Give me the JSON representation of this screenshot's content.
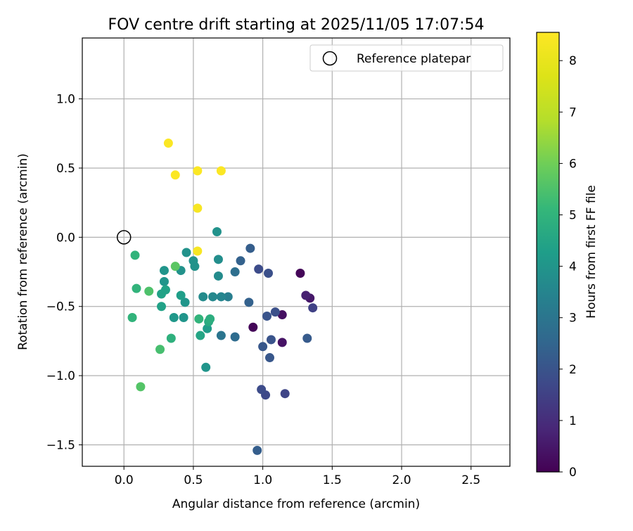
{
  "chart_data": {
    "type": "scatter",
    "title": "FOV centre drift starting at 2025/11/05 17:07:54",
    "xlabel": "Angular distance from reference (arcmin)",
    "ylabel": "Rotation from reference (arcmin)",
    "xlim": [
      -0.3,
      2.78
    ],
    "ylim": [
      -1.655,
      1.44
    ],
    "grid": true,
    "x_ticks": [
      0.0,
      0.5,
      1.0,
      1.5,
      2.0,
      2.5
    ],
    "x_tick_labels": [
      "0.0",
      "0.5",
      "1.0",
      "1.5",
      "2.0",
      "2.5"
    ],
    "y_ticks": [
      1.0,
      0.5,
      0.0,
      -0.5,
      -1.0,
      -1.5
    ],
    "y_tick_labels": [
      "1.0",
      "0.5",
      "0.0",
      "−0.5",
      "−1.0",
      "−1.5"
    ],
    "colorbar": {
      "label": "Hours from first FF file",
      "range": [
        0,
        8.55
      ],
      "ticks": [
        0,
        1,
        2,
        3,
        4,
        5,
        6,
        7,
        8
      ],
      "tick_labels": [
        "0",
        "1",
        "2",
        "3",
        "4",
        "5",
        "6",
        "7",
        "8"
      ],
      "colormap": "viridis"
    },
    "reference": {
      "label": "Reference platepar",
      "x": 0.0,
      "y": 0.0
    },
    "legend_location": "top-right",
    "points": [
      {
        "x": 1.27,
        "y": -0.26,
        "h": 0.1
      },
      {
        "x": 0.93,
        "y": -0.65,
        "h": 0.1
      },
      {
        "x": 1.14,
        "y": -0.56,
        "h": 0.3
      },
      {
        "x": 1.14,
        "y": -0.76,
        "h": 0.4
      },
      {
        "x": 1.34,
        "y": -0.44,
        "h": 0.5
      },
      {
        "x": 1.31,
        "y": -0.42,
        "h": 0.7
      },
      {
        "x": 1.36,
        "y": -0.51,
        "h": 1.5
      },
      {
        "x": 1.16,
        "y": -1.13,
        "h": 1.6
      },
      {
        "x": 1.02,
        "y": -1.14,
        "h": 1.7
      },
      {
        "x": 0.99,
        "y": -1.1,
        "h": 1.8
      },
      {
        "x": 0.97,
        "y": -0.23,
        "h": 1.8
      },
      {
        "x": 1.04,
        "y": -0.26,
        "h": 1.9
      },
      {
        "x": 1.09,
        "y": -0.54,
        "h": 1.9
      },
      {
        "x": 1.03,
        "y": -0.57,
        "h": 2.0
      },
      {
        "x": 1.06,
        "y": -0.74,
        "h": 2.0
      },
      {
        "x": 1.0,
        "y": -0.79,
        "h": 2.1
      },
      {
        "x": 1.05,
        "y": -0.87,
        "h": 2.1
      },
      {
        "x": 1.32,
        "y": -0.73,
        "h": 2.2
      },
      {
        "x": 0.91,
        "y": -0.08,
        "h": 2.3
      },
      {
        "x": 0.84,
        "y": -0.17,
        "h": 2.4
      },
      {
        "x": 0.9,
        "y": -0.47,
        "h": 2.4
      },
      {
        "x": 0.96,
        "y": -1.54,
        "h": 2.3
      },
      {
        "x": 0.8,
        "y": -0.72,
        "h": 2.7
      },
      {
        "x": 0.8,
        "y": -0.25,
        "h": 2.8
      },
      {
        "x": 0.7,
        "y": -0.71,
        "h": 3.0
      },
      {
        "x": 0.75,
        "y": -0.43,
        "h": 3.3
      },
      {
        "x": 0.7,
        "y": -0.43,
        "h": 3.5
      },
      {
        "x": 0.64,
        "y": -0.43,
        "h": 3.6
      },
      {
        "x": 0.57,
        "y": -0.43,
        "h": 3.7
      },
      {
        "x": 0.68,
        "y": -0.28,
        "h": 3.7
      },
      {
        "x": 0.68,
        "y": -0.16,
        "h": 3.8
      },
      {
        "x": 0.67,
        "y": 0.04,
        "h": 3.9
      },
      {
        "x": 0.45,
        "y": -0.11,
        "h": 3.9
      },
      {
        "x": 0.5,
        "y": -0.17,
        "h": 3.9
      },
      {
        "x": 0.51,
        "y": -0.21,
        "h": 3.9
      },
      {
        "x": 0.41,
        "y": -0.24,
        "h": 3.9
      },
      {
        "x": 0.29,
        "y": -0.24,
        "h": 4.0
      },
      {
        "x": 0.29,
        "y": -0.32,
        "h": 4.0
      },
      {
        "x": 0.59,
        "y": -0.94,
        "h": 4.0
      },
      {
        "x": 0.44,
        "y": -0.47,
        "h": 4.0
      },
      {
        "x": 0.43,
        "y": -0.58,
        "h": 4.0
      },
      {
        "x": 0.36,
        "y": -0.58,
        "h": 4.1
      },
      {
        "x": 0.6,
        "y": -0.66,
        "h": 4.2
      },
      {
        "x": 0.41,
        "y": -0.42,
        "h": 4.3
      },
      {
        "x": 0.27,
        "y": -0.41,
        "h": 4.4
      },
      {
        "x": 0.3,
        "y": -0.38,
        "h": 4.4
      },
      {
        "x": 0.27,
        "y": -0.5,
        "h": 4.4
      },
      {
        "x": 0.55,
        "y": -0.71,
        "h": 4.5
      },
      {
        "x": 0.61,
        "y": -0.61,
        "h": 4.7
      },
      {
        "x": 0.62,
        "y": -0.59,
        "h": 4.8
      },
      {
        "x": 0.34,
        "y": -0.73,
        "h": 4.9
      },
      {
        "x": 0.54,
        "y": -0.59,
        "h": 5.0
      },
      {
        "x": 0.08,
        "y": -0.13,
        "h": 5.0
      },
      {
        "x": 0.09,
        "y": -0.37,
        "h": 5.0
      },
      {
        "x": 0.06,
        "y": -0.58,
        "h": 5.0
      },
      {
        "x": 0.26,
        "y": -0.81,
        "h": 5.4
      },
      {
        "x": 0.18,
        "y": -0.39,
        "h": 5.5
      },
      {
        "x": 0.12,
        "y": -1.08,
        "h": 5.6
      },
      {
        "x": 0.37,
        "y": -0.21,
        "h": 5.7
      },
      {
        "x": 0.53,
        "y": -0.1,
        "h": 8.4
      },
      {
        "x": 0.53,
        "y": 0.21,
        "h": 8.4
      },
      {
        "x": 0.37,
        "y": 0.45,
        "h": 8.5
      },
      {
        "x": 0.53,
        "y": 0.48,
        "h": 8.5
      },
      {
        "x": 0.7,
        "y": 0.48,
        "h": 8.5
      },
      {
        "x": 0.32,
        "y": 0.68,
        "h": 8.5
      }
    ]
  }
}
